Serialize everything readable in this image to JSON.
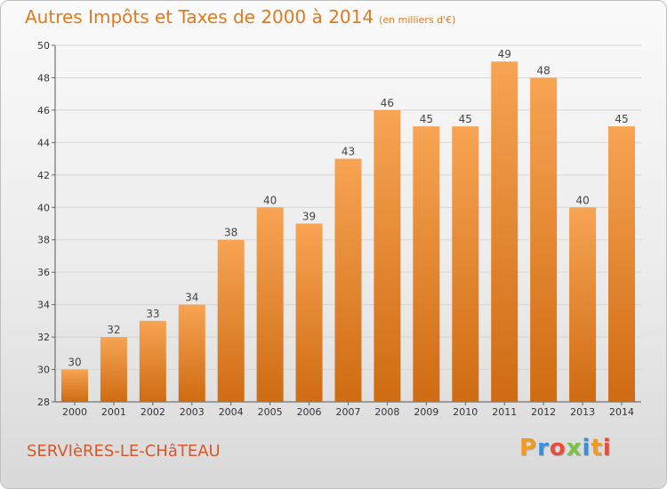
{
  "header": {
    "title": "Autres Impôts et Taxes de 2000 à 2014",
    "unit": "(en milliers d'€)"
  },
  "footer": {
    "place": "SERVIèRES-LE-CHâTEAU",
    "brand": "Proxiti"
  },
  "colors": {
    "bar_top": "#f7a453",
    "bar_bottom": "#cf6b12",
    "title": "#e07a1f",
    "place": "#d9572a",
    "brand_letters": [
      "#f29a1f",
      "#3a8fd9",
      "#e94b3c",
      "#7cc142",
      "#3a8fd9",
      "#f29a1f",
      "#e94b3c"
    ]
  },
  "chart_data": {
    "type": "bar",
    "title": "Autres Impôts et Taxes de 2000 à 2014",
    "subtitle": "(en milliers d'€)",
    "xlabel": "",
    "ylabel": "",
    "categories": [
      "2000",
      "2001",
      "2002",
      "2003",
      "2004",
      "2005",
      "2006",
      "2007",
      "2008",
      "2009",
      "2010",
      "2011",
      "2012",
      "2013",
      "2014"
    ],
    "values": [
      30,
      32,
      33,
      34,
      38,
      40,
      39,
      43,
      46,
      45,
      45,
      49,
      48,
      40,
      45
    ],
    "ylim": [
      28,
      50
    ],
    "yticks": [
      28,
      30,
      32,
      34,
      36,
      38,
      40,
      42,
      44,
      46,
      48,
      50
    ],
    "grid": true,
    "data_labels": true
  }
}
